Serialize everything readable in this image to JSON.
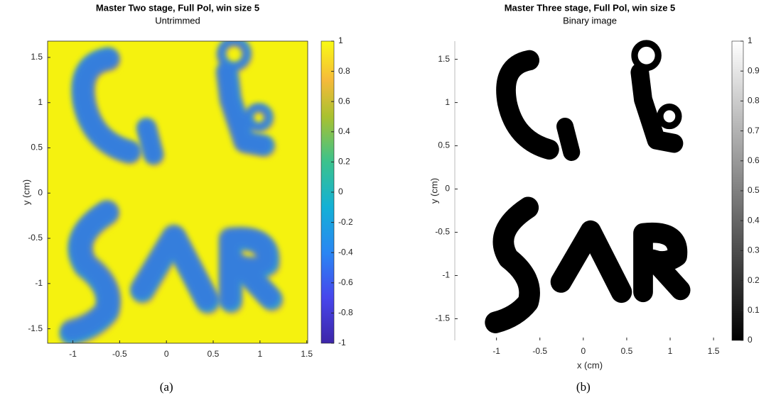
{
  "chart_data": [
    {
      "type": "image",
      "title": "Master Two stage, Full Pol, win size 5",
      "subtitle": "Untrimmed",
      "ylabel": "y (cm)",
      "caption": "(a)",
      "colormap": "parula",
      "xlim": [
        -1.27,
        1.51
      ],
      "ylim": [
        -1.66,
        1.68
      ],
      "xticks": [
        -1,
        -0.5,
        0,
        0.5,
        1,
        1.5
      ],
      "yticks": [
        1.5,
        1,
        0.5,
        0,
        -0.5,
        -1,
        -1.5
      ],
      "clim": [
        -1,
        1
      ],
      "cticks": [
        1,
        0.8,
        0.6,
        0.4,
        0.2,
        0,
        -0.2,
        -0.4,
        -0.6,
        -0.8,
        -1
      ]
    },
    {
      "type": "image",
      "title": "Master Three stage, Full Pol, win size 5",
      "subtitle": "Binary image",
      "xlabel": "x (cm)",
      "ylabel": "y (cm)",
      "caption": "(b)",
      "colormap": "gray",
      "xlim": [
        -1.48,
        1.63
      ],
      "ylim": [
        -1.75,
        1.71
      ],
      "xticks": [
        -1,
        -0.5,
        0,
        0.5,
        1,
        1.5
      ],
      "yticks": [
        1.5,
        1,
        0.5,
        0,
        -0.5,
        -1,
        -1.5
      ],
      "clim": [
        0,
        1
      ],
      "cticks": [
        1,
        0.9,
        0.8,
        0.7,
        0.6,
        0.5,
        0.4,
        0.3,
        0.2,
        0.1,
        0
      ]
    }
  ]
}
